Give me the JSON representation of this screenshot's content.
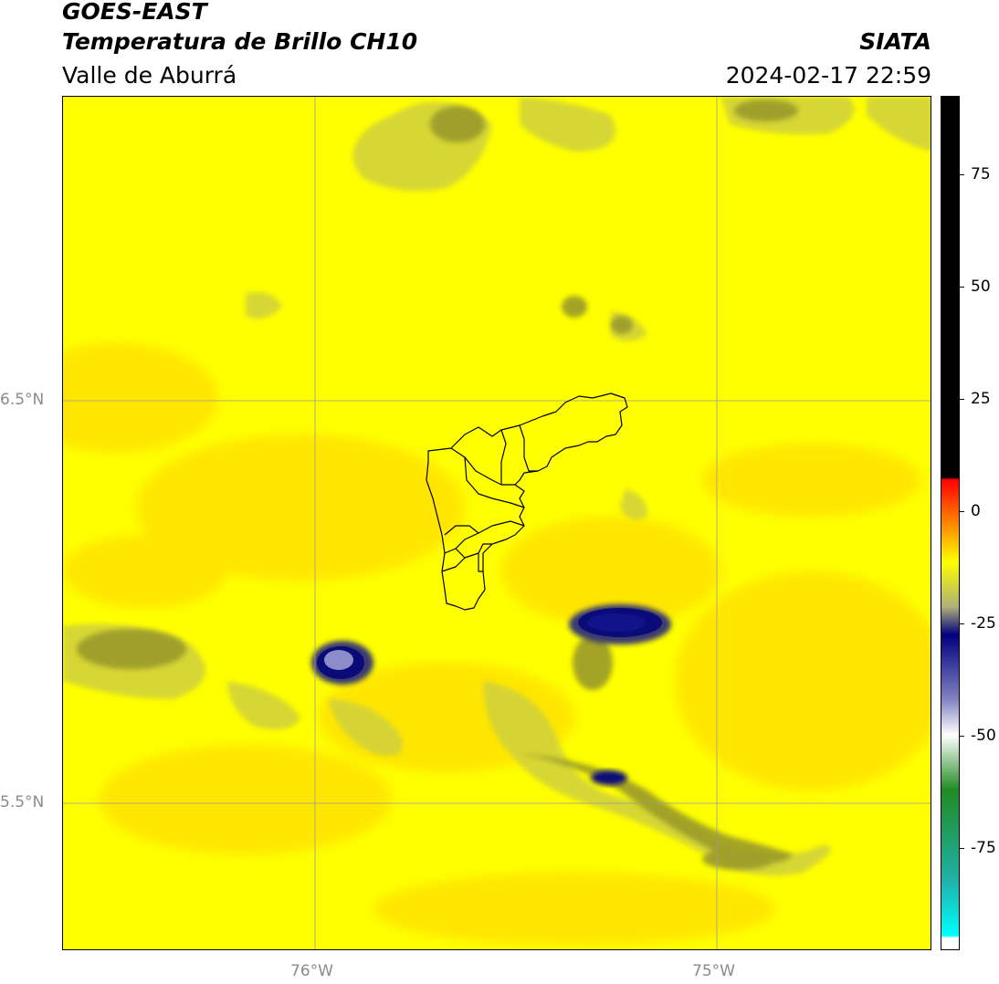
{
  "header": {
    "title_line1": "GOES-EAST",
    "title_line2": "Temperatura de Brillo CH10",
    "region": "Valle de Aburrá",
    "source": "SIATA",
    "datetime": "2024-02-17 22:59"
  },
  "map": {
    "latitude_labels": [
      "6.5°N",
      "5.5°N"
    ],
    "longitude_labels": [
      "76°W",
      "75°W"
    ],
    "colors": {
      "background": "#ffff00",
      "warm_band": "#ffe000",
      "olive": "#c8c832",
      "dark_olive": "#8a8a2e",
      "cold_core": "#0a0a78",
      "very_cold_core": "#8c8cc8",
      "gridline": "#999999",
      "boundary": "#000000"
    }
  },
  "colorbar": {
    "tick_labels": [
      "75",
      "50",
      "25",
      "0",
      "-25",
      "-50",
      "-75"
    ],
    "range": [
      -95,
      92
    ],
    "color_stops": [
      {
        "value": 92,
        "color": "#000000"
      },
      {
        "value": 8.5,
        "color": "#000000"
      },
      {
        "value": 8,
        "color": "#ff0000"
      },
      {
        "value": 0,
        "color": "#ff7000"
      },
      {
        "value": -10,
        "color": "#ffff00"
      },
      {
        "value": -20,
        "color": "#aeae7a"
      },
      {
        "value": -26,
        "color": "#000080"
      },
      {
        "value": -40,
        "color": "#8080c0"
      },
      {
        "value": -48,
        "color": "#ffffff"
      },
      {
        "value": -60,
        "color": "#228b22"
      },
      {
        "value": -80,
        "color": "#20b2aa"
      },
      {
        "value": -92,
        "color": "#00ffff"
      },
      {
        "value": -92.5,
        "color": "#ffffff"
      }
    ]
  }
}
